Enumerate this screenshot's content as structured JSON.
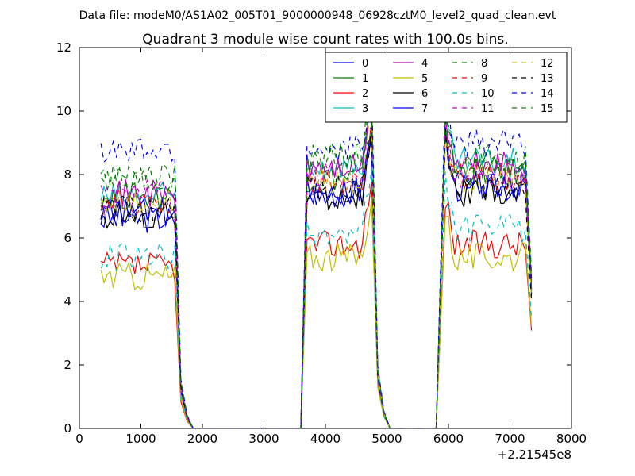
{
  "figure": {
    "suptitle": "Data file: modeM0/AS1A02_005T01_9000000948_06928cztM0_level2_quad_clean.evt"
  },
  "chart_data": {
    "type": "line",
    "title": "Quadrant 3 module wise count rates with 100.0s bins.",
    "xlabel": "",
    "ylabel": "",
    "x_offset_label": "+2.21545e8",
    "xlim": [
      0,
      8000
    ],
    "ylim": [
      0,
      12
    ],
    "x_ticks": [
      0,
      1000,
      2000,
      3000,
      4000,
      5000,
      6000,
      7000,
      8000
    ],
    "y_ticks": [
      0,
      2,
      4,
      6,
      8,
      10,
      12
    ],
    "grid": false,
    "legend": {
      "position": "top-right",
      "columns": 4
    },
    "segments": [
      {
        "start": 350,
        "end": 1550,
        "step": 50
      },
      {
        "start": 3700,
        "end": 4750,
        "step": 50
      },
      {
        "start": 5950,
        "end": 7250,
        "step": 50
      }
    ],
    "segment_edges": [
      {
        "x": [
          1550,
          1650,
          1750,
          1850,
          3500,
          3600,
          3700
        ],
        "y_pattern": [
          "last",
          "ramp_down1",
          "ramp_down2",
          0,
          0,
          0,
          "first"
        ]
      },
      {
        "x": [
          4750,
          4850,
          4950,
          5050,
          5700,
          5800,
          5950
        ],
        "y_pattern": [
          "last",
          "ramp_down1",
          "ramp_down2",
          0,
          0,
          0,
          "first"
        ]
      },
      {
        "x": [
          7250,
          7350
        ],
        "y_pattern": [
          "last",
          "end"
        ]
      }
    ],
    "series": [
      {
        "name": "0",
        "color": "#0000ff",
        "dash": "solid",
        "base": [
          6.6,
          7.4,
          7.6
        ]
      },
      {
        "name": "1",
        "color": "#008000",
        "dash": "solid",
        "base": [
          7.3,
          7.9,
          8.1
        ]
      },
      {
        "name": "2",
        "color": "#ff0000",
        "dash": "solid",
        "base": [
          5.1,
          5.8,
          5.8
        ]
      },
      {
        "name": "3",
        "color": "#00bfbf",
        "dash": "solid",
        "base": [
          7.3,
          8.3,
          8.4
        ]
      },
      {
        "name": "4",
        "color": "#bf00bf",
        "dash": "solid",
        "base": [
          7.4,
          8.2,
          8.3
        ]
      },
      {
        "name": "5",
        "color": "#bfbf00",
        "dash": "solid",
        "base": [
          4.8,
          5.4,
          5.4
        ]
      },
      {
        "name": "6",
        "color": "#000000",
        "dash": "solid",
        "base": [
          6.7,
          7.3,
          7.4
        ]
      },
      {
        "name": "7",
        "color": "#0000ff",
        "dash": "solid",
        "base": [
          6.8,
          7.5,
          7.7
        ]
      },
      {
        "name": "8",
        "color": "#008000",
        "dash": "dashed",
        "base": [
          7.8,
          8.5,
          8.3
        ]
      },
      {
        "name": "9",
        "color": "#ff0000",
        "dash": "dashed",
        "base": [
          7.1,
          7.8,
          7.9
        ]
      },
      {
        "name": "10",
        "color": "#00bfbf",
        "dash": "dashed",
        "base": [
          5.4,
          6.1,
          6.3
        ]
      },
      {
        "name": "11",
        "color": "#bf00bf",
        "dash": "dashed",
        "base": [
          7.4,
          8.0,
          8.0
        ]
      },
      {
        "name": "12",
        "color": "#bfbf00",
        "dash": "dashed",
        "base": [
          7.1,
          7.8,
          7.8
        ]
      },
      {
        "name": "13",
        "color": "#000000",
        "dash": "dashed",
        "base": [
          6.9,
          7.6,
          7.6
        ]
      },
      {
        "name": "14",
        "color": "#0000ff",
        "dash": "dashed",
        "base": [
          8.7,
          8.8,
          9.0
        ]
      },
      {
        "name": "15",
        "color": "#008000",
        "dash": "dashed",
        "base": [
          7.9,
          8.6,
          8.5
        ]
      }
    ]
  }
}
